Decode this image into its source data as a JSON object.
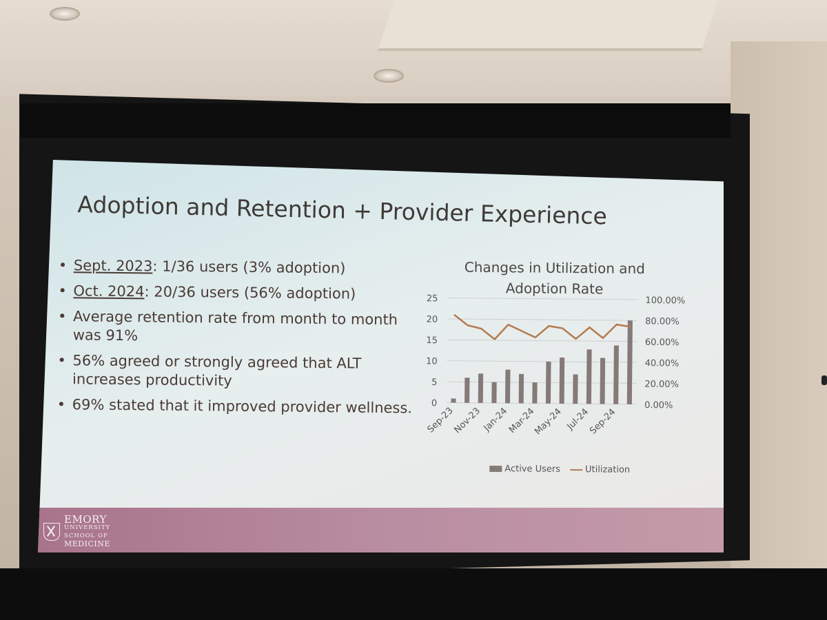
{
  "slide": {
    "title": "Adoption and Retention + Provider Experience",
    "bullets": [
      {
        "label": "Sept. 2023",
        "text": ": 1/36 users (3% adoption)"
      },
      {
        "label": "Oct. 2024",
        "text": ": 20/36 users (56% adoption)"
      },
      {
        "label": "",
        "text": "Average retention rate from month to month was 91%"
      },
      {
        "label": "",
        "text": "56% agreed or strongly agreed that ALT increases productivity"
      },
      {
        "label": "",
        "text": "69% stated that it improved provider wellness."
      }
    ],
    "logo": {
      "main": "EMORY",
      "sub1": "UNIVERSITY",
      "sub2": "SCHOOL OF",
      "sub3": "MEDICINE"
    }
  },
  "chart_data": {
    "type": "bar",
    "title": "Changes in Utilization and Adoption Rate",
    "categories": [
      "Sep-23",
      "Oct-23",
      "Nov-23",
      "Dec-23",
      "Jan-24",
      "Feb-24",
      "Mar-24",
      "Apr-24",
      "May-24",
      "Jun-24",
      "Jul-24",
      "Aug-24",
      "Sep-24",
      "Oct-24"
    ],
    "tick_labels": [
      "Sep-23",
      "Nov-23",
      "Jan-24",
      "Mar-24",
      "May-24",
      "Jul-24",
      "Sep-24"
    ],
    "series": [
      {
        "name": "Active Users",
        "type": "bar",
        "axis": "left",
        "color": "#857a78",
        "values": [
          1,
          6,
          7,
          5,
          8,
          7,
          5,
          10,
          11,
          7,
          13,
          11,
          14,
          20
        ]
      },
      {
        "name": "Utilization",
        "type": "line",
        "axis": "right",
        "color": "#b47a4e",
        "values": [
          84,
          74,
          71,
          61,
          75,
          69,
          63,
          74,
          72,
          62,
          73,
          63,
          76,
          74
        ]
      }
    ],
    "left_axis": {
      "ylim": [
        0,
        25
      ],
      "ticks": [
        "0",
        "5",
        "10",
        "15",
        "20",
        "25"
      ]
    },
    "right_axis": {
      "ylim": [
        0,
        100
      ],
      "ticks": [
        "0.00%",
        "20.00%",
        "40.00%",
        "60.00%",
        "80.00%",
        "100.00%"
      ]
    },
    "grid": "horizontal",
    "legend": "bottom"
  }
}
